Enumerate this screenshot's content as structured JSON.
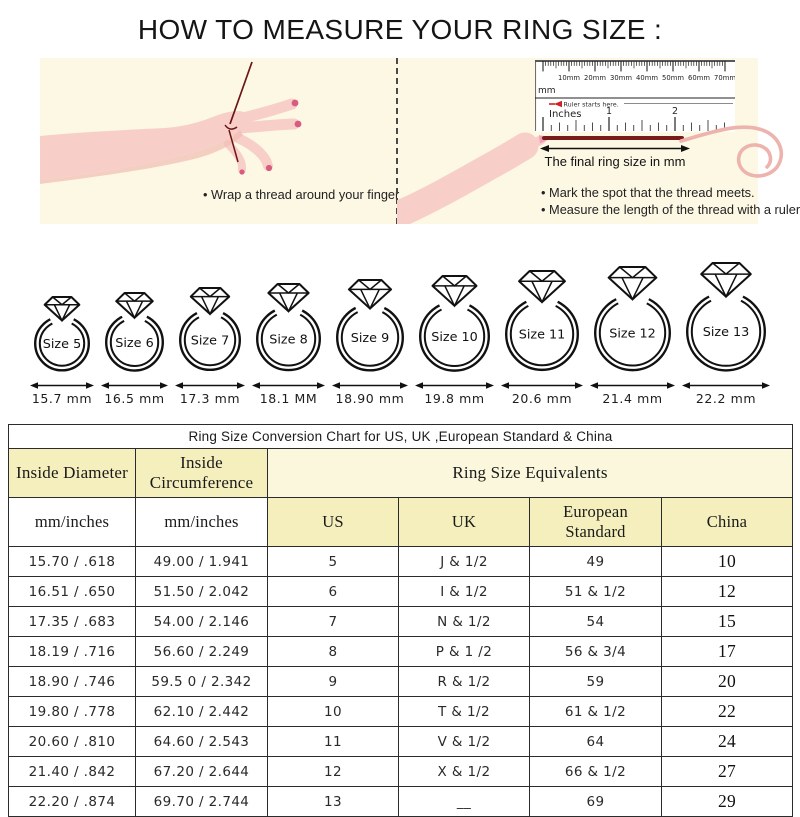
{
  "title": "HOW TO MEASURE YOUR RING SIZE :",
  "steps": {
    "left": {
      "bullet": "• Wrap a thread around your finger"
    },
    "right": {
      "ruler": {
        "mm_labels": [
          "10mm",
          "20mm",
          "30mm",
          "40mm",
          "50mm",
          "60mm",
          "70mm"
        ],
        "unit_mm": "mm",
        "start_note": "Ruler starts here.",
        "unit_inches": "Inches",
        "inch_numbers": [
          "1",
          "2"
        ]
      },
      "final_size_label": "The final ring size in mm",
      "bullets": [
        "• Mark the spot that the thread meets.",
        "• Measure the length of the thread with a ruler"
      ]
    }
  },
  "rings": [
    {
      "label": "Size 5",
      "diameter_mm": "15.7 mm"
    },
    {
      "label": "Size 6",
      "diameter_mm": "16.5 mm"
    },
    {
      "label": "Size 7",
      "diameter_mm": "17.3 mm"
    },
    {
      "label": "Size 8",
      "diameter_mm": "18.1 MM"
    },
    {
      "label": "Size 9",
      "diameter_mm": "18.90 mm"
    },
    {
      "label": "Size 10",
      "diameter_mm": "19.8 mm"
    },
    {
      "label": "Size 11",
      "diameter_mm": "20.6 mm"
    },
    {
      "label": "Size 12",
      "diameter_mm": "21.4 mm"
    },
    {
      "label": "Size 13",
      "diameter_mm": "22.2 mm"
    }
  ],
  "table": {
    "caption": "Ring Size Conversion Chart for US, UK ,European Standard & China",
    "headers": {
      "inside_diameter": "Inside Diameter",
      "inside_circumference": "Inside Circumference",
      "equivalents": "Ring Size Equivalents",
      "diameter_unit": "mm/inches",
      "circumference_unit": "mm/inches",
      "us": "US",
      "uk": "UK",
      "european_standard": "European Standard",
      "china": "China"
    },
    "rows": [
      [
        "15.70 / .618",
        "49.00 / 1.941",
        "5",
        "J & 1/2",
        "49",
        "10"
      ],
      [
        "16.51 / .650",
        "51.50 / 2.042",
        "6",
        "I & 1/2",
        "51 & 1/2",
        "12"
      ],
      [
        "17.35 / .683",
        "54.00 / 2.146",
        "7",
        "N & 1/2",
        "54",
        "15"
      ],
      [
        "18.19 / .716",
        "56.60 / 2.249",
        "8",
        "P & 1 /2",
        "56 & 3/4",
        "17"
      ],
      [
        "18.90 / .746",
        "59.5 0 / 2.342",
        "9",
        "R & 1/2",
        "59",
        "20"
      ],
      [
        "19.80 / .778",
        "62.10 / 2.442",
        "10",
        "T & 1/2",
        "61 & 1/2",
        "22"
      ],
      [
        "20.60 / .810",
        "64.60 / 2.543",
        "11",
        "V & 1/2",
        "64",
        "24"
      ],
      [
        "21.40 / .842",
        "67.20 / 2.644",
        "12",
        "X & 1/2",
        "66 & 1/2",
        "27"
      ],
      [
        "22.20 / .874",
        "69.70 / 2.744",
        "13",
        "__",
        "69",
        "29"
      ]
    ]
  },
  "colors": {
    "panel_bg": "#fcf8e3",
    "header_yellow": "#f5efbd",
    "header_cream": "#faf7dc",
    "hand_pink": "#f7cfc8",
    "nail_pink": "#d85b80",
    "thread_red": "#7a1b1b",
    "marker_red": "#cc2229"
  }
}
